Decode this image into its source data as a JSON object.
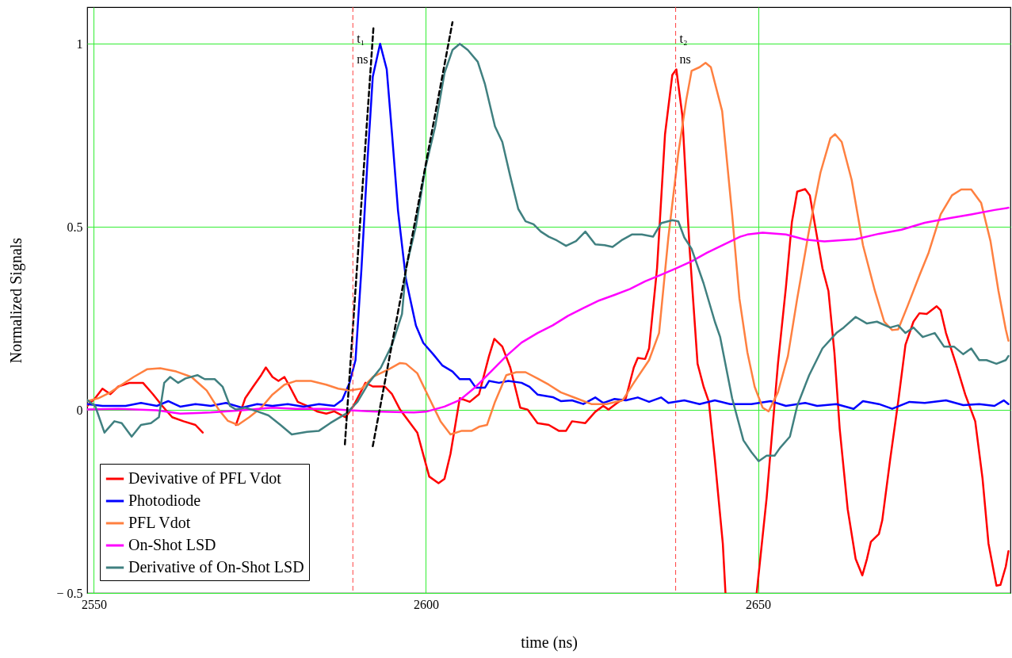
{
  "chart_data": {
    "type": "line",
    "xlabel": "time (ns)",
    "ylabel": "Normalized Signals",
    "xlim": [
      2549,
      2688
    ],
    "ylim": [
      -0.5,
      1.1
    ],
    "xticks": [
      2550,
      2600,
      2650
    ],
    "yticks": [
      {
        "value": -0.5,
        "label": "− 0.5"
      },
      0,
      0.5,
      1
    ],
    "grid": true,
    "legend": "bottom left",
    "ref_lines": [
      {
        "axis": "x",
        "value": 2589,
        "color": "#ff4040",
        "line_style": "dashed"
      },
      {
        "axis": "x",
        "value": 2637.6,
        "color": "#ff4040",
        "line_style": "dashed"
      }
    ],
    "annotations": [
      "t₁ ns",
      "t₂ ns"
    ],
    "series": [
      {
        "name": "Devivative of PFL Vdot",
        "color": "#ff0000",
        "x": [
          2549.0,
          2550.2,
          2551.3,
          2552.5,
          2553.7,
          2555.4,
          2557.4,
          2558.9,
          2560.3,
          2561.8,
          2563.5,
          2565.3,
          2566.4,
          2568.5,
          2571.4,
          2572.8,
          2574.0,
          2575.2,
          2575.9,
          2576.9,
          2577.8,
          2578.7,
          2579.5,
          2580.7,
          2582.1,
          2583.6,
          2585.0,
          2586.2,
          2587.9,
          2589.1,
          2590.9,
          2592.0,
          2593.8,
          2594.9,
          2596.1,
          2598.7,
          2600.5,
          2601.9,
          2602.8,
          2603.7,
          2605.1,
          2606.6,
          2608.0,
          2609.5,
          2610.3,
          2611.5,
          2612.7,
          2614.2,
          2615.3,
          2616.8,
          2618.5,
          2620.0,
          2621.1,
          2622.0,
          2624.0,
          2625.5,
          2626.7,
          2627.5,
          2629.0,
          2630.1,
          2631.3,
          2631.9,
          2633.0,
          2633.6,
          2634.8,
          2636.0,
          2637.1,
          2637.7,
          2638.6,
          2639.7,
          2640.9,
          2641.8,
          2642.6,
          2643.5,
          2644.7,
          2645.1,
          2647.5,
          2649.8,
          2651.3,
          2653.0,
          2654.2,
          2655.1,
          2655.9,
          2657.1,
          2657.8,
          2658.9,
          2659.7,
          2660.6,
          2661.5,
          2662.3,
          2663.5,
          2664.7,
          2665.7,
          2666.4,
          2667.0,
          2668.2,
          2668.7,
          2669.9,
          2671.1,
          2672.2,
          2673.4,
          2674.3,
          2675.4,
          2676.9,
          2677.5,
          2678.3,
          2679.8,
          2681.2,
          2682.7,
          2683.8,
          2684.7,
          2685.9,
          2686.5,
          2687.3,
          2687.7
        ],
        "values": [
          0.011,
          0.032,
          0.058,
          0.043,
          0.064,
          0.074,
          0.074,
          0.043,
          0.011,
          -0.02,
          -0.031,
          -0.041,
          -0.062,
          null,
          -0.041,
          0.032,
          0.064,
          0.095,
          0.116,
          0.09,
          0.079,
          0.09,
          0.064,
          0.022,
          0.011,
          -0.004,
          -0.01,
          -0.004,
          -0.02,
          0.011,
          0.074,
          0.064,
          0.064,
          0.043,
          0.001,
          -0.062,
          -0.182,
          -0.2,
          -0.188,
          -0.12,
          0.032,
          0.022,
          0.043,
          0.147,
          0.194,
          0.173,
          0.116,
          0.006,
          0.001,
          -0.036,
          -0.041,
          -0.057,
          -0.057,
          -0.031,
          -0.036,
          -0.005,
          0.011,
          0.001,
          0.022,
          0.032,
          0.116,
          0.142,
          0.139,
          0.168,
          0.387,
          0.753,
          0.915,
          0.93,
          0.805,
          0.44,
          0.126,
          0.064,
          0.022,
          -0.135,
          -0.365,
          -0.5,
          null,
          -0.5,
          -0.24,
          0.126,
          0.335,
          0.513,
          0.596,
          0.603,
          0.586,
          0.471,
          0.387,
          0.325,
          0.157,
          -0.052,
          -0.271,
          -0.407,
          -0.452,
          -0.407,
          -0.36,
          -0.339,
          -0.302,
          -0.135,
          0.022,
          0.178,
          0.241,
          0.264,
          0.262,
          0.283,
          0.272,
          0.21,
          0.126,
          0.042,
          -0.031,
          -0.187,
          -0.365,
          -0.48,
          -0.478,
          -0.428,
          -0.386
        ]
      },
      {
        "name": "Photodiode",
        "color": "#0000ff",
        "x": [
          2549.0,
          2551.3,
          2554.8,
          2557.1,
          2559.5,
          2561.2,
          2563.0,
          2565.3,
          2567.6,
          2569.9,
          2572.3,
          2574.6,
          2576.9,
          2579.2,
          2581.6,
          2583.9,
          2586.2,
          2587.4,
          2588.5,
          2589.4,
          2590.3,
          2591.2,
          2592.0,
          2593.1,
          2594.1,
          2594.9,
          2595.8,
          2597.0,
          2598.5,
          2599.6,
          2601.1,
          2602.5,
          2604.0,
          2605.1,
          2606.6,
          2607.5,
          2608.9,
          2609.5,
          2611.0,
          2612.4,
          2614.4,
          2615.6,
          2616.8,
          2619.1,
          2620.3,
          2622.0,
          2623.7,
          2625.5,
          2626.7,
          2628.4,
          2630.1,
          2631.9,
          2633.6,
          2635.4,
          2636.5,
          2638.9,
          2641.2,
          2643.5,
          2645.8,
          2649.0,
          2651.9,
          2654.2,
          2657.1,
          2658.9,
          2661.8,
          2664.4,
          2665.8,
          2668.2,
          2670.2,
          2672.8,
          2675.1,
          2678.3,
          2680.9,
          2683.3,
          2685.6,
          2687.0,
          2687.7
        ],
        "values": [
          0.016,
          0.011,
          0.011,
          0.019,
          0.011,
          0.024,
          0.009,
          0.016,
          0.011,
          0.019,
          0.006,
          0.016,
          0.011,
          0.016,
          0.009,
          0.016,
          0.011,
          0.027,
          0.074,
          0.136,
          0.387,
          0.68,
          0.91,
          1.0,
          0.93,
          0.753,
          0.544,
          0.356,
          0.23,
          0.183,
          0.152,
          0.121,
          0.105,
          0.084,
          0.084,
          0.061,
          0.061,
          0.079,
          0.074,
          0.079,
          0.074,
          0.063,
          0.042,
          0.035,
          0.024,
          0.026,
          0.016,
          0.034,
          0.019,
          0.03,
          0.026,
          0.034,
          0.022,
          0.034,
          0.019,
          0.026,
          0.016,
          0.026,
          0.016,
          0.016,
          0.024,
          0.011,
          0.019,
          0.011,
          0.016,
          0.003,
          0.024,
          0.016,
          0.003,
          0.022,
          0.019,
          0.026,
          0.013,
          0.016,
          0.011,
          0.026,
          0.016
        ]
      },
      {
        "name": "PFL Vdot",
        "color": "#ff8040",
        "x": [
          2549.0,
          2550.7,
          2552.5,
          2554.2,
          2556.0,
          2558.0,
          2560.0,
          2562.4,
          2564.7,
          2567.0,
          2568.8,
          2570.2,
          2571.7,
          2573.4,
          2575.2,
          2576.9,
          2578.7,
          2580.4,
          2582.7,
          2585.0,
          2586.8,
          2588.5,
          2590.3,
          2592.0,
          2594.4,
          2596.1,
          2597.0,
          2598.7,
          2600.5,
          2602.2,
          2603.7,
          2605.4,
          2606.9,
          2608.0,
          2609.2,
          2610.4,
          2612.1,
          2613.6,
          2615.0,
          2616.8,
          2618.5,
          2620.3,
          2622.6,
          2624.9,
          2627.2,
          2629.6,
          2631.3,
          2633.6,
          2635.1,
          2636.5,
          2638.0,
          2639.2,
          2640.0,
          2641.2,
          2642.1,
          2642.9,
          2644.6,
          2646.1,
          2647.2,
          2648.4,
          2649.5,
          2650.7,
          2651.6,
          2653.0,
          2654.5,
          2655.9,
          2657.7,
          2659.4,
          2660.9,
          2661.6,
          2662.6,
          2664.1,
          2665.8,
          2667.6,
          2669.0,
          2670.2,
          2671.1,
          2672.5,
          2674.3,
          2675.7,
          2677.5,
          2679.2,
          2680.6,
          2682.1,
          2683.6,
          2685.0,
          2686.2,
          2687.3,
          2687.7
        ],
        "values": [
          0.024,
          0.032,
          0.048,
          0.069,
          0.09,
          0.111,
          0.114,
          0.105,
          0.09,
          0.053,
          0.001,
          -0.03,
          -0.041,
          -0.02,
          0.006,
          0.042,
          0.069,
          0.079,
          0.079,
          0.069,
          0.058,
          0.053,
          0.058,
          0.09,
          0.111,
          0.128,
          0.126,
          0.1,
          0.032,
          -0.031,
          -0.067,
          -0.057,
          -0.057,
          -0.046,
          -0.041,
          0.022,
          0.095,
          0.103,
          0.103,
          0.086,
          0.069,
          0.048,
          0.032,
          0.016,
          0.016,
          0.026,
          0.074,
          0.136,
          0.21,
          0.471,
          0.701,
          0.847,
          0.926,
          0.936,
          0.948,
          0.936,
          0.816,
          0.534,
          0.304,
          0.157,
          0.063,
          0.006,
          -0.004,
          0.048,
          0.147,
          0.304,
          0.492,
          0.648,
          0.742,
          0.753,
          0.732,
          0.628,
          0.45,
          0.325,
          0.241,
          0.218,
          0.22,
          0.283,
          0.367,
          0.43,
          0.534,
          0.586,
          0.602,
          0.602,
          0.565,
          0.461,
          0.325,
          0.22,
          0.189
        ]
      },
      {
        "name": "On-Shot LSD",
        "color": "#ff00ff",
        "x": [
          2549.0,
          2553.7,
          2559.5,
          2563.0,
          2567.6,
          2572.3,
          2576.9,
          2580.4,
          2585.0,
          2588.5,
          2592.0,
          2598.2,
          2600.0,
          2602.8,
          2605.1,
          2607.5,
          2609.8,
          2612.1,
          2614.4,
          2616.8,
          2619.1,
          2621.4,
          2623.7,
          2626.1,
          2628.4,
          2630.7,
          2633.0,
          2635.4,
          2637.7,
          2640.0,
          2642.3,
          2644.7,
          2647.3,
          2648.4,
          2650.7,
          2654.2,
          2657.1,
          2660.0,
          2664.7,
          2668.2,
          2671.6,
          2675.1,
          2678.6,
          2682.1,
          2685.6,
          2687.7
        ],
        "values": [
          0.001,
          0.003,
          -0.001,
          -0.01,
          -0.007,
          -0.001,
          0.006,
          0.003,
          0.003,
          -0.001,
          -0.004,
          -0.007,
          -0.005,
          0.009,
          0.027,
          0.063,
          0.105,
          0.147,
          0.184,
          0.21,
          0.231,
          0.257,
          0.278,
          0.299,
          0.314,
          0.33,
          0.351,
          0.369,
          0.387,
          0.406,
          0.429,
          0.45,
          0.473,
          0.479,
          0.484,
          0.479,
          0.465,
          0.46,
          0.466,
          0.481,
          0.492,
          0.511,
          0.523,
          0.534,
          0.546,
          0.552
        ]
      },
      {
        "name": "Derivative of On-Shot LSD",
        "color": "#408080",
        "x": [
          2549.0,
          2550.2,
          2551.6,
          2553.1,
          2554.2,
          2555.7,
          2557.1,
          2558.6,
          2559.8,
          2560.6,
          2561.5,
          2562.7,
          2563.8,
          2565.6,
          2566.7,
          2568.2,
          2569.4,
          2570.5,
          2571.4,
          2572.8,
          2574.6,
          2576.3,
          2578.1,
          2579.8,
          2582.1,
          2583.9,
          2585.6,
          2588.0,
          2589.7,
          2591.4,
          2593.2,
          2594.9,
          2596.4,
          2597.0,
          2598.5,
          2599.9,
          2601.4,
          2602.8,
          2604.0,
          2605.1,
          2606.3,
          2607.8,
          2608.9,
          2610.4,
          2611.5,
          2612.7,
          2613.9,
          2615.0,
          2616.2,
          2617.3,
          2618.5,
          2619.7,
          2621.1,
          2622.6,
          2624.0,
          2625.5,
          2626.9,
          2628.1,
          2629.6,
          2631.0,
          2632.5,
          2634.2,
          2635.4,
          2637.1,
          2638.0,
          2638.9,
          2640.0,
          2641.8,
          2643.5,
          2644.3,
          2646.1,
          2647.8,
          2649.0,
          2650.1,
          2651.3,
          2652.5,
          2653.3,
          2654.8,
          2655.9,
          2657.7,
          2659.7,
          2661.8,
          2662.9,
          2664.7,
          2666.4,
          2667.9,
          2669.9,
          2671.1,
          2672.2,
          2673.4,
          2674.8,
          2676.6,
          2678.0,
          2679.5,
          2680.9,
          2682.1,
          2683.3,
          2684.4,
          2685.9,
          2687.3,
          2687.7
        ],
        "values": [
          0.027,
          0.011,
          -0.062,
          -0.031,
          -0.036,
          -0.073,
          -0.041,
          -0.036,
          -0.02,
          0.074,
          0.09,
          0.074,
          0.086,
          0.095,
          0.084,
          0.084,
          0.063,
          0.011,
          0.001,
          0.006,
          -0.004,
          -0.015,
          -0.041,
          -0.067,
          -0.06,
          -0.057,
          -0.036,
          -0.01,
          0.022,
          0.074,
          0.115,
          0.178,
          0.262,
          0.387,
          0.502,
          0.659,
          0.774,
          0.92,
          0.983,
          1.0,
          0.983,
          0.951,
          0.889,
          0.774,
          0.732,
          0.638,
          0.549,
          0.515,
          0.507,
          0.487,
          0.473,
          0.463,
          0.448,
          0.461,
          0.487,
          0.452,
          0.45,
          0.445,
          0.465,
          0.479,
          0.479,
          0.473,
          0.51,
          0.518,
          0.515,
          0.471,
          0.44,
          0.346,
          0.241,
          0.199,
          0.032,
          -0.083,
          -0.115,
          -0.14,
          -0.125,
          -0.125,
          -0.104,
          -0.073,
          0.011,
          0.095,
          0.168,
          0.21,
          0.225,
          0.254,
          0.236,
          0.241,
          0.225,
          0.231,
          0.21,
          0.225,
          0.199,
          0.21,
          0.173,
          0.173,
          0.152,
          0.168,
          0.136,
          0.136,
          0.126,
          0.136,
          0.147
        ]
      },
      {
        "type": "line",
        "line_style": "dashed",
        "color": "#000000",
        "x": [
          2587.8,
          2592.1
        ],
        "values": [
          -0.094,
          1.044
        ]
      },
      {
        "type": "line",
        "line_style": "dashed",
        "color": "#000000",
        "x": [
          2592.0,
          2604.0
        ],
        "values": [
          -0.099,
          1.059
        ]
      }
    ]
  }
}
